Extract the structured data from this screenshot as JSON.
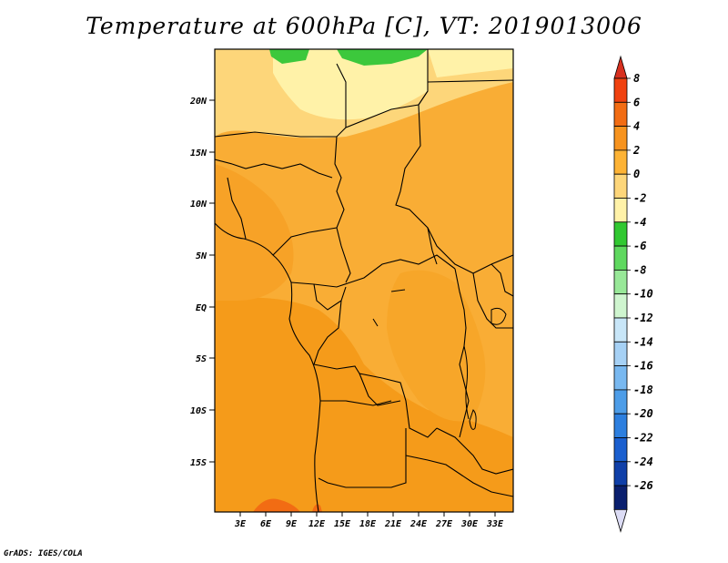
{
  "title": "Temperature at 600hPa [C], VT: 2019013006",
  "footer": "GrADS: IGES/COLA",
  "lat_labels": [
    "20N",
    "15N",
    "10N",
    "5N",
    "EQ",
    "5S",
    "10S",
    "15S"
  ],
  "lon_labels": [
    "3E",
    "6E",
    "9E",
    "12E",
    "15E",
    "18E",
    "21E",
    "24E",
    "27E",
    "30E",
    "33E"
  ],
  "colorbar": {
    "labels": [
      "8",
      "6",
      "4",
      "2",
      "0",
      "-2",
      "-4",
      "-6",
      "-8",
      "-10",
      "-12",
      "-14",
      "-16",
      "-18",
      "-20",
      "-22",
      "-24",
      "-26"
    ],
    "colors": [
      "#d7301f",
      "#f0410f",
      "#f26c13",
      "#f7931e",
      "#fdb335",
      "#fdd67a",
      "#fff2a8",
      "#31c831",
      "#5fd85f",
      "#98e898",
      "#cff5cf",
      "#c8e6f8",
      "#a6d1f5",
      "#78b8f0",
      "#4d9de8",
      "#2d7fdf",
      "#1a5fcf",
      "#0f3fa8",
      "#0a1f6e",
      "#dcdcf5"
    ]
  },
  "legend_colors": {
    "ocean": "#fdb335",
    "land_mid": "#f7a629",
    "south_warm": "#f59b1a",
    "north_cool": "#fde08c",
    "north_coolest": "#fff2a8",
    "green_patch": "#3cc83c",
    "hot_spot": "#f26c13"
  }
}
